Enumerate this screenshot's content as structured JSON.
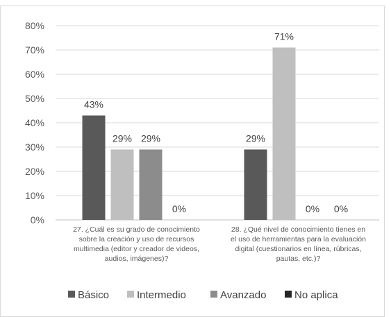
{
  "chart_data": {
    "type": "bar",
    "title": "",
    "xlabel": "",
    "ylabel": "",
    "ylim": [
      0,
      80
    ],
    "ytick_step": 10,
    "ytick_labels": [
      "0%",
      "10%",
      "20%",
      "30%",
      "40%",
      "50%",
      "60%",
      "70%",
      "80%"
    ],
    "grid": true,
    "legend_position": "bottom",
    "categories": [
      [
        "27. ¿Cuál es su grado de conocimiento",
        "sobre la creación y uso de recursos",
        "multimedia (editor y creador de videos,",
        "audios, imágenes)?"
      ],
      [
        "28. ¿Qué nivel de conocimiento tienes en",
        "el uso de herramientas para la evaluación",
        "digital (cuestionarios en línea, rúbricas,",
        "pautas, etc.)?"
      ]
    ],
    "series": [
      {
        "name": "Básico",
        "color": "#595959",
        "values": [
          43,
          29
        ],
        "labels": [
          "43%",
          "29%"
        ]
      },
      {
        "name": "Intermedio",
        "color": "#bfbfbf",
        "values": [
          29,
          71
        ],
        "labels": [
          "29%",
          "71%"
        ]
      },
      {
        "name": "Avanzado",
        "color": "#8c8c8c",
        "values": [
          29,
          0
        ],
        "labels": [
          "29%",
          "0%"
        ]
      },
      {
        "name": "No aplica",
        "color": "#262626",
        "values": [
          0,
          0
        ],
        "labels": [
          "0%",
          "0%"
        ]
      }
    ]
  }
}
